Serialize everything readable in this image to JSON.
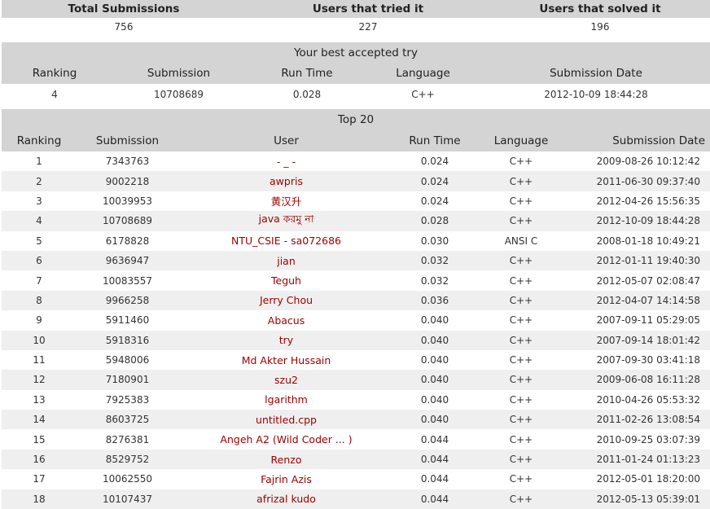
{
  "stats": {
    "headers": [
      "Total Submissions",
      "Users that tried it",
      "Users that solved it"
    ],
    "values": [
      "756",
      "227",
      "196"
    ]
  },
  "best": {
    "caption": "Your best accepted try",
    "headers": [
      "Ranking",
      "Submission",
      "Run Time",
      "Language",
      "Submission Date"
    ],
    "row": [
      "4",
      "10708689",
      "0.028",
      "C++",
      "2012-10-09 18:44:28"
    ]
  },
  "top": {
    "caption": "Top 20",
    "headers": [
      "Ranking",
      "Submission",
      "User",
      "Run Time",
      "Language",
      "Submission Date"
    ],
    "rows": [
      [
        "1",
        "7343763",
        "- _ -",
        "0.024",
        "C++",
        "2009-08-26 10:12:42"
      ],
      [
        "2",
        "9002218",
        "awpris",
        "0.024",
        "C++",
        "2011-06-30 09:37:40"
      ],
      [
        "3",
        "10039953",
        "黄汉升",
        "0.024",
        "C++",
        "2012-04-26 15:56:35"
      ],
      [
        "4",
        "10708689",
        "java করমু না",
        "0.028",
        "C++",
        "2012-10-09 18:44:28"
      ],
      [
        "5",
        "6178828",
        "NTU_CSIE - sa072686",
        "0.030",
        "ANSI C",
        "2008-01-18 10:49:21"
      ],
      [
        "6",
        "9636947",
        "jian",
        "0.032",
        "C++",
        "2012-01-11 19:40:30"
      ],
      [
        "7",
        "10083557",
        "Teguh",
        "0.032",
        "C++",
        "2012-05-07 02:08:47"
      ],
      [
        "8",
        "9966258",
        "Jerry Chou",
        "0.036",
        "C++",
        "2012-04-07 14:14:58"
      ],
      [
        "9",
        "5911460",
        "Abacus",
        "0.040",
        "C++",
        "2007-09-11 05:29:05"
      ],
      [
        "10",
        "5918316",
        "try",
        "0.040",
        "C++",
        "2007-09-14 18:01:42"
      ],
      [
        "11",
        "5948006",
        "Md Akter Hussain",
        "0.040",
        "C++",
        "2007-09-30 03:41:18"
      ],
      [
        "12",
        "7180901",
        "szu2",
        "0.040",
        "C++",
        "2009-06-08 16:11:28"
      ],
      [
        "13",
        "7925383",
        "lgarithm",
        "0.040",
        "C++",
        "2010-04-26 05:53:32"
      ],
      [
        "14",
        "8603725",
        "untitled.cpp",
        "0.040",
        "C++",
        "2011-02-26 13:08:54"
      ],
      [
        "15",
        "8276381",
        "Angeh A2 (Wild Coder ... )",
        "0.044",
        "C++",
        "2010-09-25 03:07:39"
      ],
      [
        "16",
        "8529752",
        "Renzo",
        "0.044",
        "C++",
        "2011-01-24 01:13:23"
      ],
      [
        "17",
        "10062550",
        "Fajrin Azis",
        "0.044",
        "C++",
        "2012-05-01 18:20:00"
      ],
      [
        "18",
        "10107437",
        "afrizal kudo",
        "0.044",
        "C++",
        "2012-05-13 05:39:01"
      ]
    ]
  }
}
